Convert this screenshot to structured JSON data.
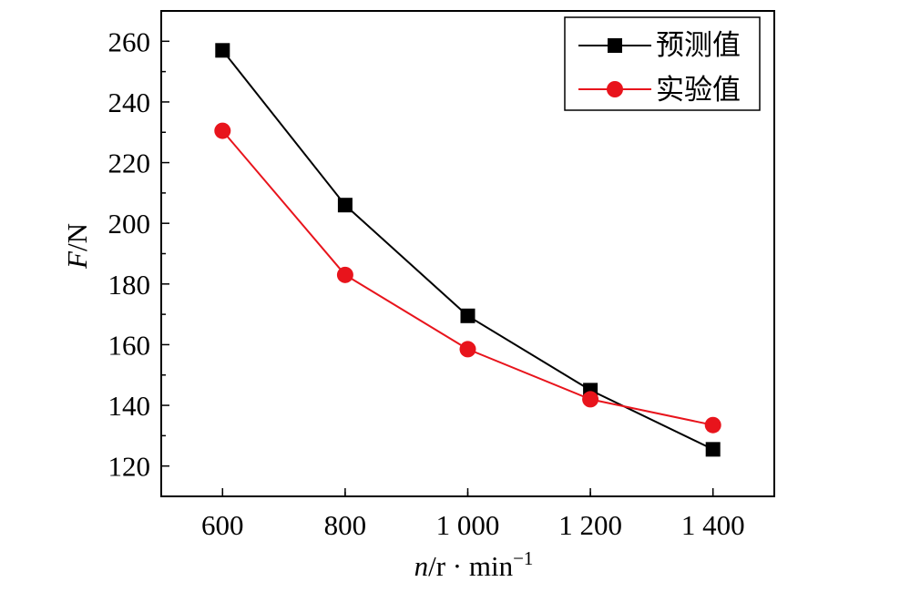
{
  "chart_data": {
    "type": "line",
    "x": [
      600,
      800,
      1000,
      1200,
      1400
    ],
    "xtick_labels": [
      "600",
      "800",
      "1 000",
      "1 200",
      "1 400"
    ],
    "ytick_labels": [
      "120",
      "140",
      "160",
      "180",
      "200",
      "220",
      "240",
      "260"
    ],
    "yticks": [
      120,
      140,
      160,
      180,
      200,
      220,
      240,
      260
    ],
    "xlim": [
      500,
      1500
    ],
    "ylim": [
      110,
      270
    ],
    "xlabel": {
      "italic": "n",
      "rest": "/r · min",
      "sup": "−1"
    },
    "ylabel": {
      "italic": "F",
      "rest": "/N"
    },
    "legend_position": "top-right",
    "grid": false,
    "series": [
      {
        "name": "预测值",
        "marker": "square",
        "color": "#000000",
        "values": [
          257,
          206,
          169.5,
          145,
          125.5
        ]
      },
      {
        "name": "实验值",
        "marker": "circle",
        "color": "#e8141c",
        "values": [
          230.5,
          183,
          158.5,
          142,
          133.5
        ]
      }
    ]
  }
}
